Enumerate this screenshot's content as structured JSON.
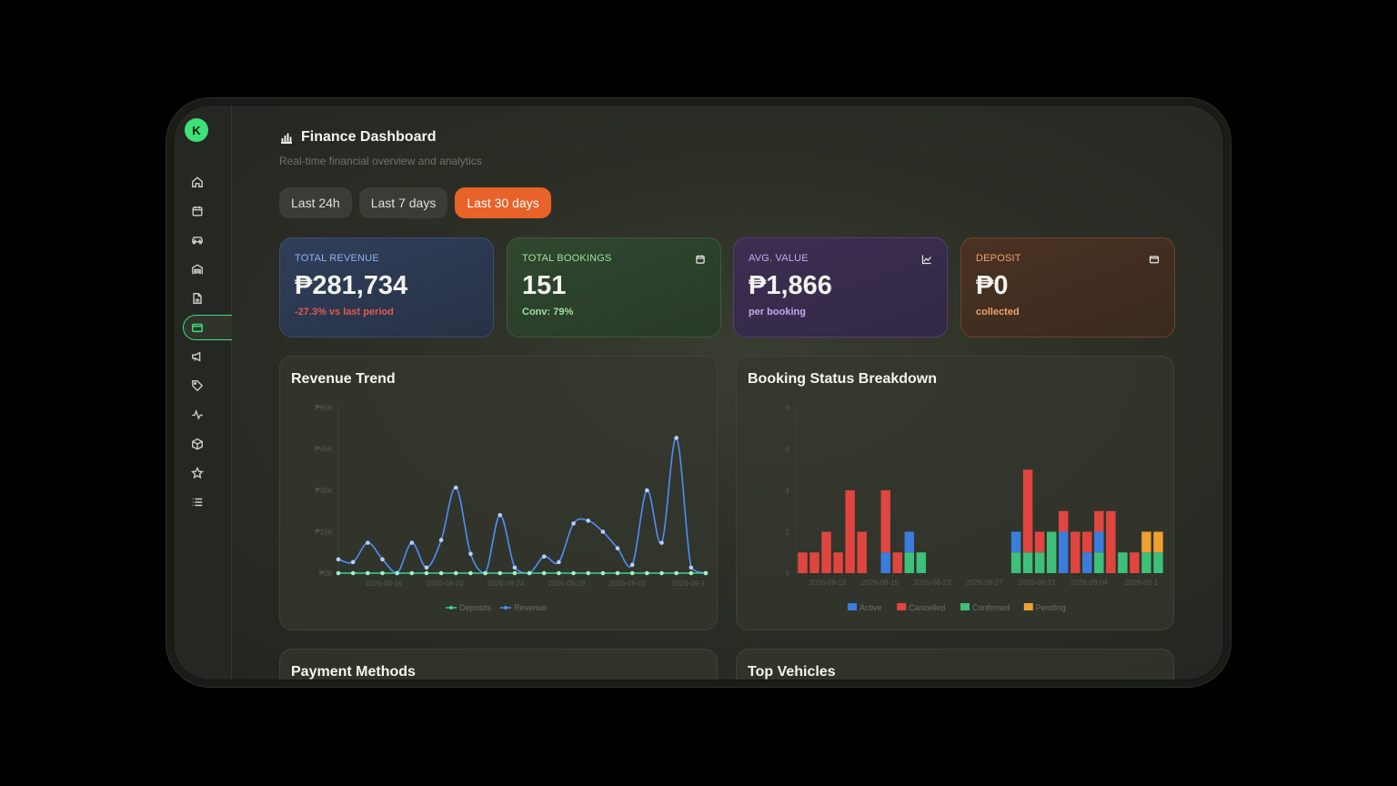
{
  "sidebar": {
    "avatar_initial": "K",
    "items": [
      {
        "name": "home",
        "icon": "home-icon"
      },
      {
        "name": "calendar",
        "icon": "calendar-icon"
      },
      {
        "name": "vehicles",
        "icon": "car-icon"
      },
      {
        "name": "garage",
        "icon": "warehouse-icon"
      },
      {
        "name": "documents",
        "icon": "document-icon"
      },
      {
        "name": "finance",
        "icon": "wallet-icon",
        "active": true
      },
      {
        "name": "campaigns",
        "icon": "megaphone-icon"
      },
      {
        "name": "tags",
        "icon": "tag-icon"
      },
      {
        "name": "activity",
        "icon": "activity-icon"
      },
      {
        "name": "inventory",
        "icon": "box-icon"
      },
      {
        "name": "reviews",
        "icon": "star-icon"
      },
      {
        "name": "list",
        "icon": "list-icon"
      }
    ]
  },
  "header": {
    "title": "Finance Dashboard",
    "subtitle": "Real-time financial overview and analytics",
    "icon": "bar-chart-icon"
  },
  "range_tabs": [
    {
      "label": "Last 24h",
      "active": false
    },
    {
      "label": "Last 7 days",
      "active": false
    },
    {
      "label": "Last 30 days",
      "active": true
    }
  ],
  "stats": {
    "revenue": {
      "label": "TOTAL REVENUE",
      "value": "₱281,734",
      "sub": "-27.3% vs last period"
    },
    "bookings": {
      "label": "TOTAL BOOKINGS",
      "value": "151",
      "sub": "Conv: 79%",
      "icon": "calendar-icon"
    },
    "avg": {
      "label": "AVG. VALUE",
      "value": "₱1,866",
      "sub": "per booking",
      "icon": "trend-icon"
    },
    "deposit": {
      "label": "DEPOSIT",
      "value": "₱0",
      "sub": "collected",
      "icon": "wallet-icon"
    }
  },
  "panels": {
    "trend_title": "Revenue Trend",
    "status_title": "Booking Status Breakdown",
    "payment_title": "Payment Methods",
    "vehicles_title": "Top Vehicles"
  },
  "colors": {
    "accent": "#e8622a",
    "green": "#3ee07a",
    "revenue_line": "#4f8ef7",
    "deposit_line": "#3ecf8e",
    "active": "#3b7ddd",
    "cancelled": "#e0463f",
    "confirmed": "#3ec07a",
    "pending": "#f0a030"
  },
  "chart_data": [
    {
      "type": "line",
      "title": "Revenue Trend",
      "x_tick_labels": [
        "2026-08-16",
        "2026-08-20",
        "2026-08-24",
        "2026-08-28",
        "2026-09-01",
        "2026-09-1"
      ],
      "y_tick_labels": [
        "₱0K",
        "₱15K",
        "₱30K",
        "₱45K",
        "₱60K"
      ],
      "ylim": [
        0,
        60000
      ],
      "series": [
        {
          "name": "Revenue",
          "values": [
            5000,
            4000,
            11000,
            5000,
            0,
            11000,
            2000,
            12000,
            31000,
            7000,
            0,
            21000,
            2000,
            0,
            6000,
            4000,
            18000,
            19000,
            15000,
            9000,
            3000,
            30000,
            11000,
            49000,
            2000,
            0
          ]
        },
        {
          "name": "Deposits",
          "values": [
            0,
            0,
            0,
            0,
            0,
            0,
            0,
            0,
            0,
            0,
            0,
            0,
            0,
            0,
            0,
            0,
            0,
            0,
            0,
            0,
            0,
            0,
            0,
            0,
            0,
            0
          ]
        }
      ],
      "legend": [
        "Deposits",
        "Revenue"
      ],
      "legend_position": "bottom"
    },
    {
      "type": "bar",
      "stacked": true,
      "title": "Booking Status Breakdown",
      "x_tick_labels": [
        "2026-08-15",
        "2026-08-19",
        "2026-08-23",
        "2026-08-27",
        "2026-08-31",
        "2026-09-04",
        "2026-09-1"
      ],
      "y_tick_labels": [
        "0",
        "2",
        "4",
        "6",
        "8"
      ],
      "ylim": [
        0,
        8
      ],
      "legend": [
        "Active",
        "Cancelled",
        "Confirmed",
        "Pending"
      ],
      "legend_position": "bottom",
      "series": [
        {
          "name": "Active",
          "values": [
            0,
            0,
            0,
            0,
            0,
            0,
            0,
            1,
            0,
            1,
            0,
            0,
            0,
            0,
            0,
            0,
            0,
            0,
            1,
            0,
            0,
            0,
            2,
            0,
            1,
            1,
            0,
            0,
            0,
            0,
            0
          ]
        },
        {
          "name": "Cancelled",
          "values": [
            1,
            1,
            2,
            1,
            4,
            2,
            0,
            3,
            1,
            0,
            0,
            0,
            0,
            0,
            0,
            0,
            0,
            0,
            0,
            4,
            1,
            0,
            1,
            2,
            1,
            1,
            3,
            0,
            1,
            0,
            0
          ]
        },
        {
          "name": "Confirmed",
          "values": [
            0,
            0,
            0,
            0,
            0,
            0,
            0,
            0,
            0,
            1,
            1,
            0,
            0,
            0,
            0,
            0,
            0,
            0,
            1,
            1,
            1,
            2,
            0,
            0,
            0,
            1,
            0,
            1,
            0,
            1,
            1
          ]
        },
        {
          "name": "Pending",
          "values": [
            0,
            0,
            0,
            0,
            0,
            0,
            0,
            0,
            0,
            0,
            0,
            0,
            0,
            0,
            0,
            0,
            0,
            0,
            0,
            0,
            0,
            0,
            0,
            0,
            0,
            0,
            0,
            0,
            0,
            1,
            1
          ]
        }
      ]
    }
  ]
}
